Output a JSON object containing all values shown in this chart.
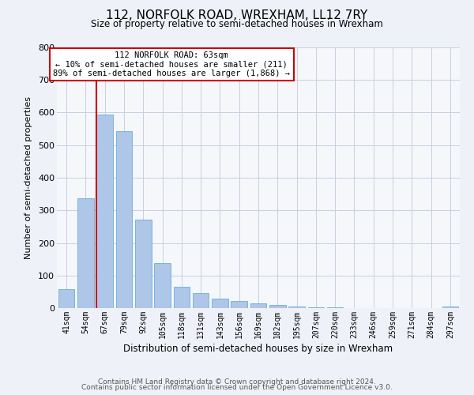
{
  "title": "112, NORFOLK ROAD, WREXHAM, LL12 7RY",
  "subtitle": "Size of property relative to semi-detached houses in Wrexham",
  "xlabel": "Distribution of semi-detached houses by size in Wrexham",
  "ylabel": "Number of semi-detached properties",
  "bar_labels": [
    "41sqm",
    "54sqm",
    "67sqm",
    "79sqm",
    "92sqm",
    "105sqm",
    "118sqm",
    "131sqm",
    "143sqm",
    "156sqm",
    "169sqm",
    "182sqm",
    "195sqm",
    "207sqm",
    "220sqm",
    "233sqm",
    "246sqm",
    "259sqm",
    "271sqm",
    "284sqm",
    "297sqm"
  ],
  "bar_heights": [
    57,
    338,
    594,
    543,
    272,
    137,
    65,
    46,
    28,
    21,
    14,
    9,
    5,
    3,
    2,
    1,
    1,
    0,
    0,
    0,
    5
  ],
  "bar_color": "#aec6e8",
  "bar_edge_color": "#6aaed6",
  "property_line_bin_index": 2,
  "annotation_title": "112 NORFOLK ROAD: 63sqm",
  "annotation_line1": "← 10% of semi-detached houses are smaller (211)",
  "annotation_line2": "89% of semi-detached houses are larger (1,868) →",
  "annotation_box_color": "#ffffff",
  "annotation_box_edge_color": "#cc0000",
  "vline_color": "#cc0000",
  "ylim": [
    0,
    800
  ],
  "yticks": [
    0,
    100,
    200,
    300,
    400,
    500,
    600,
    700,
    800
  ],
  "footer1": "Contains HM Land Registry data © Crown copyright and database right 2024.",
  "footer2": "Contains public sector information licensed under the Open Government Licence v3.0.",
  "bg_color": "#eef2f8",
  "plot_bg_color": "#f5f7fb"
}
